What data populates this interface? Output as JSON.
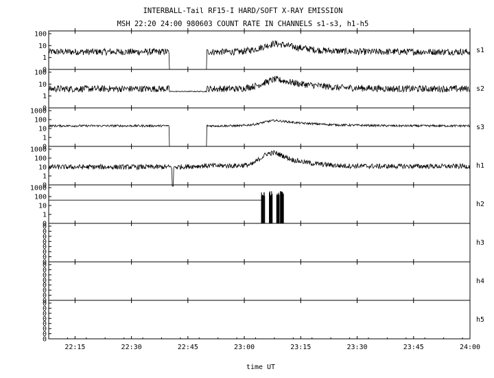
{
  "chart_data": {
    "type": "line",
    "title": "INTERBALL-Tail RF15-I HARD/SOFT X-RAY EMISSION",
    "subtitle": "MSH 22:20 24:00 980603  COUNT RATE IN CHANNELS s1-s3, h1-h5",
    "xlabel": "time UT",
    "xlim": [
      "22:08",
      "24:00"
    ],
    "x_ticks": [
      "22:15",
      "22:30",
      "22:45",
      "23:00",
      "23:15",
      "23:30",
      "23:45",
      "24:00"
    ],
    "y_scale": "log",
    "grid": false,
    "series": [
      {
        "name": "s1",
        "y_ticks": [
          "100",
          "10",
          "1",
          "0"
        ],
        "baseline": 3,
        "gaps": [
          [
            "22:40",
            "22:50"
          ]
        ],
        "points": [
          [
            "22:08",
            3
          ],
          [
            "22:59",
            3
          ],
          [
            "23:03",
            5
          ],
          [
            "23:06",
            10
          ],
          [
            "23:08",
            15
          ],
          [
            "23:10",
            12
          ],
          [
            "23:14",
            7
          ],
          [
            "23:20",
            4
          ],
          [
            "23:30",
            3
          ],
          [
            "24:00",
            3
          ]
        ]
      },
      {
        "name": "s2",
        "y_ticks": [
          "100",
          "10",
          "1",
          "0"
        ],
        "baseline": 4,
        "quiet": [
          [
            "22:40",
            "22:50"
          ]
        ],
        "points": [
          [
            "22:08",
            4
          ],
          [
            "22:59",
            4
          ],
          [
            "23:03",
            7
          ],
          [
            "23:06",
            15
          ],
          [
            "23:08",
            25
          ],
          [
            "23:10",
            20
          ],
          [
            "23:15",
            10
          ],
          [
            "23:25",
            5
          ],
          [
            "23:40",
            4
          ],
          [
            "24:00",
            4
          ]
        ]
      },
      {
        "name": "s3",
        "y_ticks": [
          "1000",
          "100",
          "10",
          "1",
          "0"
        ],
        "baseline": 20,
        "gaps": [
          [
            "22:40",
            "22:50"
          ]
        ],
        "points": [
          [
            "22:08",
            20
          ],
          [
            "22:59",
            20
          ],
          [
            "23:03",
            30
          ],
          [
            "23:06",
            60
          ],
          [
            "23:08",
            80
          ],
          [
            "23:11",
            60
          ],
          [
            "23:15",
            40
          ],
          [
            "23:25",
            25
          ],
          [
            "23:40",
            20
          ],
          [
            "24:00",
            20
          ]
        ]
      },
      {
        "name": "h1",
        "y_ticks": [
          "1000",
          "100",
          "10",
          "1",
          "0"
        ],
        "baseline": 10,
        "dropouts": [
          "22:41"
        ],
        "points": [
          [
            "22:08",
            10
          ],
          [
            "22:42",
            10
          ],
          [
            "22:50",
            14
          ],
          [
            "22:58",
            14
          ],
          [
            "23:02",
            18
          ],
          [
            "23:04",
            80
          ],
          [
            "23:06",
            300
          ],
          [
            "23:08",
            400
          ],
          [
            "23:10",
            200
          ],
          [
            "23:13",
            60
          ],
          [
            "23:18",
            25
          ],
          [
            "23:25",
            14
          ],
          [
            "23:35",
            12
          ],
          [
            "24:00",
            12
          ]
        ]
      },
      {
        "name": "h2",
        "y_ticks": [
          "1000",
          "100",
          "10",
          "1",
          "0"
        ],
        "baseline": 40,
        "burst": [
          [
            "23:05",
            300
          ],
          [
            "23:07",
            400
          ],
          [
            "23:09",
            300
          ],
          [
            "23:10",
            400
          ]
        ],
        "points": [
          [
            "22:08",
            40
          ],
          [
            "23:05",
            40
          ]
        ]
      },
      {
        "name": "h3",
        "y_ticks": [
          "0",
          "0",
          "0",
          "0",
          "0",
          "0",
          "0",
          "0"
        ],
        "points": []
      },
      {
        "name": "h4",
        "y_ticks": [
          "0",
          "0",
          "0",
          "0",
          "0",
          "0",
          "0",
          "0"
        ],
        "points": []
      },
      {
        "name": "h5",
        "y_ticks": [
          "0",
          "0",
          "0",
          "0",
          "0",
          "0",
          "0",
          "0"
        ],
        "points": []
      }
    ]
  }
}
